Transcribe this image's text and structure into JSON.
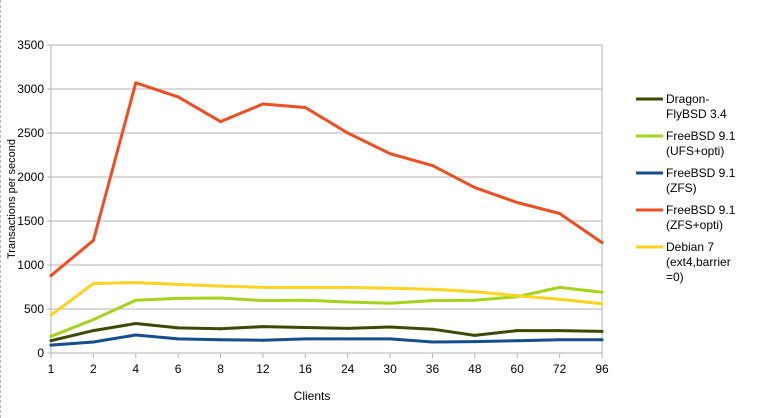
{
  "chart_data": {
    "type": "line",
    "title": "",
    "xlabel": "Clients",
    "ylabel": "Transactions per second",
    "categories": [
      "1",
      "2",
      "4",
      "6",
      "8",
      "12",
      "16",
      "24",
      "30",
      "36",
      "48",
      "60",
      "72",
      "96"
    ],
    "yticks": [
      "0",
      "500",
      "1000",
      "1500",
      "2000",
      "2500",
      "3000",
      "3500"
    ],
    "ylim": [
      0,
      3500
    ],
    "grid": true,
    "legend_position": "right",
    "series": [
      {
        "name": "DragonFlyBSD 3.4",
        "legend_lines": [
          "Dragon-",
          "FlyBSD 3.4"
        ],
        "color": "#3a4b00",
        "values": [
          140,
          255,
          335,
          285,
          275,
          300,
          290,
          280,
          295,
          270,
          200,
          255,
          255,
          245
        ]
      },
      {
        "name": "FreeBSD 9.1 (UFS+opti)",
        "legend_lines": [
          "FreeBSD 9.1",
          "(UFS+opti)"
        ],
        "color": "#a5d31a",
        "values": [
          190,
          380,
          600,
          620,
          625,
          595,
          600,
          580,
          565,
          595,
          600,
          640,
          745,
          690
        ]
      },
      {
        "name": "FreeBSD 9.1 (ZFS)",
        "legend_lines": [
          "FreeBSD 9.1",
          "(ZFS)"
        ],
        "color": "#144e8e",
        "values": [
          90,
          125,
          205,
          160,
          150,
          145,
          160,
          160,
          160,
          125,
          130,
          140,
          150,
          150
        ]
      },
      {
        "name": "FreeBSD 9.1 (ZFS+opti)",
        "legend_lines": [
          "FreeBSD 9.1",
          "(ZFS+opti)"
        ],
        "color": "#f04d23",
        "values": [
          880,
          1280,
          3070,
          2910,
          2630,
          2830,
          2790,
          2500,
          2265,
          2130,
          1880,
          1710,
          1585,
          1255
        ]
      },
      {
        "name": "Debian 7 (ext4,barrier=0)",
        "legend_lines": [
          "Debian 7",
          "(ext4,barrier",
          "=0)"
        ],
        "color": "#ffd320",
        "values": [
          430,
          790,
          800,
          780,
          760,
          745,
          745,
          745,
          735,
          725,
          695,
          650,
          610,
          560
        ]
      }
    ]
  }
}
